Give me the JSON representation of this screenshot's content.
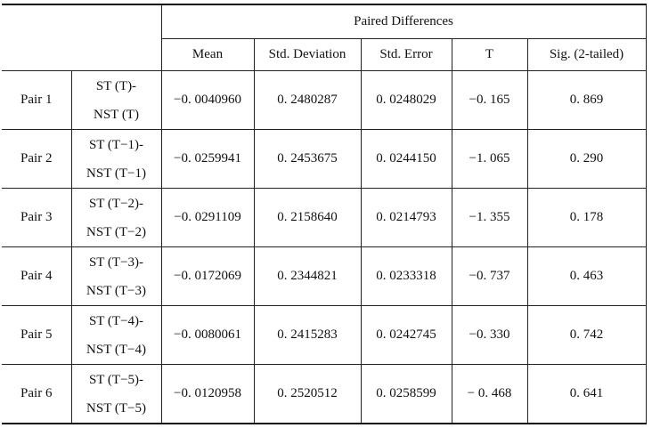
{
  "header": {
    "title": "Paired Differences",
    "columns": [
      "Mean",
      "Std. Deviation",
      "Std. Error",
      "T",
      "Sig. (2-tailed)"
    ]
  },
  "rows": [
    {
      "label": "Pair 1",
      "comparison": [
        "ST (T)-",
        "NST (T)"
      ],
      "values": [
        "−0. 0040960",
        "0. 2480287",
        "0. 0248029",
        "−0. 165",
        "0. 869"
      ]
    },
    {
      "label": "Pair 2",
      "comparison": [
        "ST (T−1)-",
        "NST (T−1)"
      ],
      "values": [
        "−0. 0259941",
        "0. 2453675",
        "0. 0244150",
        "−1. 065",
        "0. 290"
      ]
    },
    {
      "label": "Pair 3",
      "comparison": [
        "ST (T−2)-",
        "NST (T−2)"
      ],
      "values": [
        "−0. 0291109",
        "0. 2158640",
        "0. 0214793",
        "−1. 355",
        "0. 178"
      ]
    },
    {
      "label": "Pair 4",
      "comparison": [
        "ST (T−3)-",
        "NST (T−3)"
      ],
      "values": [
        "−0. 0172069",
        "0. 2344821",
        "0. 0233318",
        "−0. 737",
        "0. 463"
      ]
    },
    {
      "label": "Pair 5",
      "comparison": [
        "ST (T−4)-",
        "NST (T−4)"
      ],
      "values": [
        "−0. 0080061",
        "0. 2415283",
        "0. 0242745",
        "−0. 330",
        "0. 742"
      ]
    },
    {
      "label": "Pair 6",
      "comparison": [
        "ST (T−5)-",
        "NST (T−5)"
      ],
      "values": [
        "−0. 0120958",
        "0. 2520512",
        "0. 0258599",
        "− 0. 468",
        "0. 641"
      ]
    }
  ]
}
